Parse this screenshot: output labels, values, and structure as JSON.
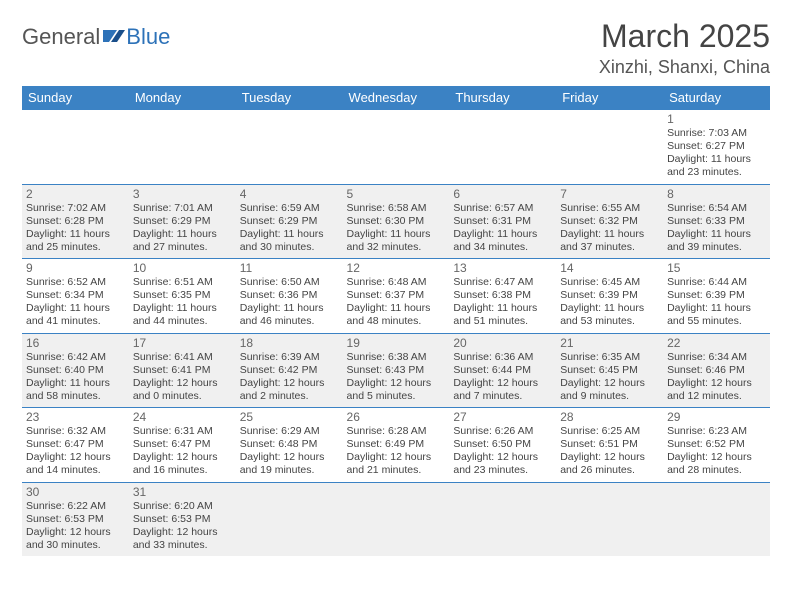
{
  "logo": {
    "part1": "General",
    "part2": "Blue"
  },
  "title": "March 2025",
  "location": "Xinzhi, Shanxi, China",
  "colors": {
    "header_bg": "#3b82c4",
    "row_alt": "#f0f0f0"
  },
  "weekdays": [
    "Sunday",
    "Monday",
    "Tuesday",
    "Wednesday",
    "Thursday",
    "Friday",
    "Saturday"
  ],
  "weeks": [
    [
      null,
      null,
      null,
      null,
      null,
      null,
      {
        "n": "1",
        "sr": "Sunrise: 7:03 AM",
        "ss": "Sunset: 6:27 PM",
        "d1": "Daylight: 11 hours",
        "d2": "and 23 minutes."
      }
    ],
    [
      {
        "n": "2",
        "sr": "Sunrise: 7:02 AM",
        "ss": "Sunset: 6:28 PM",
        "d1": "Daylight: 11 hours",
        "d2": "and 25 minutes."
      },
      {
        "n": "3",
        "sr": "Sunrise: 7:01 AM",
        "ss": "Sunset: 6:29 PM",
        "d1": "Daylight: 11 hours",
        "d2": "and 27 minutes."
      },
      {
        "n": "4",
        "sr": "Sunrise: 6:59 AM",
        "ss": "Sunset: 6:29 PM",
        "d1": "Daylight: 11 hours",
        "d2": "and 30 minutes."
      },
      {
        "n": "5",
        "sr": "Sunrise: 6:58 AM",
        "ss": "Sunset: 6:30 PM",
        "d1": "Daylight: 11 hours",
        "d2": "and 32 minutes."
      },
      {
        "n": "6",
        "sr": "Sunrise: 6:57 AM",
        "ss": "Sunset: 6:31 PM",
        "d1": "Daylight: 11 hours",
        "d2": "and 34 minutes."
      },
      {
        "n": "7",
        "sr": "Sunrise: 6:55 AM",
        "ss": "Sunset: 6:32 PM",
        "d1": "Daylight: 11 hours",
        "d2": "and 37 minutes."
      },
      {
        "n": "8",
        "sr": "Sunrise: 6:54 AM",
        "ss": "Sunset: 6:33 PM",
        "d1": "Daylight: 11 hours",
        "d2": "and 39 minutes."
      }
    ],
    [
      {
        "n": "9",
        "sr": "Sunrise: 6:52 AM",
        "ss": "Sunset: 6:34 PM",
        "d1": "Daylight: 11 hours",
        "d2": "and 41 minutes."
      },
      {
        "n": "10",
        "sr": "Sunrise: 6:51 AM",
        "ss": "Sunset: 6:35 PM",
        "d1": "Daylight: 11 hours",
        "d2": "and 44 minutes."
      },
      {
        "n": "11",
        "sr": "Sunrise: 6:50 AM",
        "ss": "Sunset: 6:36 PM",
        "d1": "Daylight: 11 hours",
        "d2": "and 46 minutes."
      },
      {
        "n": "12",
        "sr": "Sunrise: 6:48 AM",
        "ss": "Sunset: 6:37 PM",
        "d1": "Daylight: 11 hours",
        "d2": "and 48 minutes."
      },
      {
        "n": "13",
        "sr": "Sunrise: 6:47 AM",
        "ss": "Sunset: 6:38 PM",
        "d1": "Daylight: 11 hours",
        "d2": "and 51 minutes."
      },
      {
        "n": "14",
        "sr": "Sunrise: 6:45 AM",
        "ss": "Sunset: 6:39 PM",
        "d1": "Daylight: 11 hours",
        "d2": "and 53 minutes."
      },
      {
        "n": "15",
        "sr": "Sunrise: 6:44 AM",
        "ss": "Sunset: 6:39 PM",
        "d1": "Daylight: 11 hours",
        "d2": "and 55 minutes."
      }
    ],
    [
      {
        "n": "16",
        "sr": "Sunrise: 6:42 AM",
        "ss": "Sunset: 6:40 PM",
        "d1": "Daylight: 11 hours",
        "d2": "and 58 minutes."
      },
      {
        "n": "17",
        "sr": "Sunrise: 6:41 AM",
        "ss": "Sunset: 6:41 PM",
        "d1": "Daylight: 12 hours",
        "d2": "and 0 minutes."
      },
      {
        "n": "18",
        "sr": "Sunrise: 6:39 AM",
        "ss": "Sunset: 6:42 PM",
        "d1": "Daylight: 12 hours",
        "d2": "and 2 minutes."
      },
      {
        "n": "19",
        "sr": "Sunrise: 6:38 AM",
        "ss": "Sunset: 6:43 PM",
        "d1": "Daylight: 12 hours",
        "d2": "and 5 minutes."
      },
      {
        "n": "20",
        "sr": "Sunrise: 6:36 AM",
        "ss": "Sunset: 6:44 PM",
        "d1": "Daylight: 12 hours",
        "d2": "and 7 minutes."
      },
      {
        "n": "21",
        "sr": "Sunrise: 6:35 AM",
        "ss": "Sunset: 6:45 PM",
        "d1": "Daylight: 12 hours",
        "d2": "and 9 minutes."
      },
      {
        "n": "22",
        "sr": "Sunrise: 6:34 AM",
        "ss": "Sunset: 6:46 PM",
        "d1": "Daylight: 12 hours",
        "d2": "and 12 minutes."
      }
    ],
    [
      {
        "n": "23",
        "sr": "Sunrise: 6:32 AM",
        "ss": "Sunset: 6:47 PM",
        "d1": "Daylight: 12 hours",
        "d2": "and 14 minutes."
      },
      {
        "n": "24",
        "sr": "Sunrise: 6:31 AM",
        "ss": "Sunset: 6:47 PM",
        "d1": "Daylight: 12 hours",
        "d2": "and 16 minutes."
      },
      {
        "n": "25",
        "sr": "Sunrise: 6:29 AM",
        "ss": "Sunset: 6:48 PM",
        "d1": "Daylight: 12 hours",
        "d2": "and 19 minutes."
      },
      {
        "n": "26",
        "sr": "Sunrise: 6:28 AM",
        "ss": "Sunset: 6:49 PM",
        "d1": "Daylight: 12 hours",
        "d2": "and 21 minutes."
      },
      {
        "n": "27",
        "sr": "Sunrise: 6:26 AM",
        "ss": "Sunset: 6:50 PM",
        "d1": "Daylight: 12 hours",
        "d2": "and 23 minutes."
      },
      {
        "n": "28",
        "sr": "Sunrise: 6:25 AM",
        "ss": "Sunset: 6:51 PM",
        "d1": "Daylight: 12 hours",
        "d2": "and 26 minutes."
      },
      {
        "n": "29",
        "sr": "Sunrise: 6:23 AM",
        "ss": "Sunset: 6:52 PM",
        "d1": "Daylight: 12 hours",
        "d2": "and 28 minutes."
      }
    ],
    [
      {
        "n": "30",
        "sr": "Sunrise: 6:22 AM",
        "ss": "Sunset: 6:53 PM",
        "d1": "Daylight: 12 hours",
        "d2": "and 30 minutes."
      },
      {
        "n": "31",
        "sr": "Sunrise: 6:20 AM",
        "ss": "Sunset: 6:53 PM",
        "d1": "Daylight: 12 hours",
        "d2": "and 33 minutes."
      },
      null,
      null,
      null,
      null,
      null
    ]
  ]
}
